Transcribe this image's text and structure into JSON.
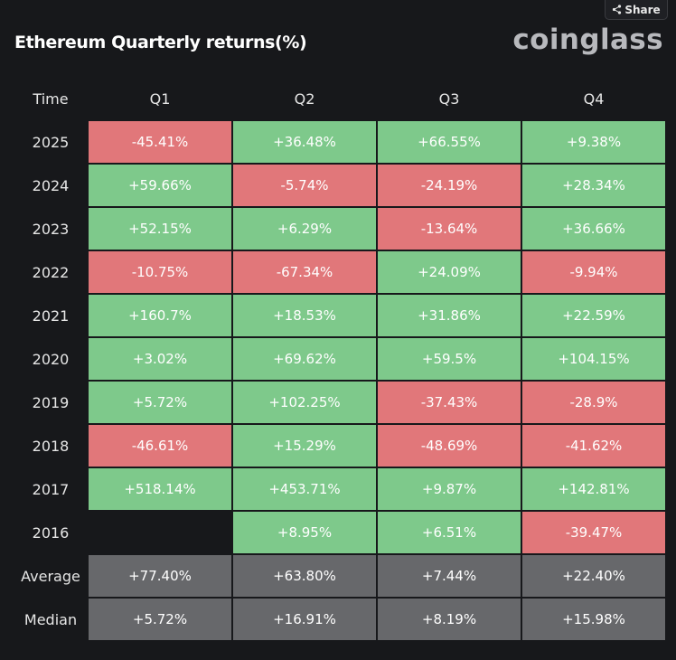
{
  "header": {
    "share_label": "Share",
    "title": "Ethereum Quarterly returns(%)",
    "logo_text": "coinglass"
  },
  "colors": {
    "background": "#17181b",
    "positive": "#7ec98b",
    "negative": "#e1777a",
    "summary": "#67686b"
  },
  "chart_data": {
    "type": "table",
    "title": "Ethereum Quarterly returns(%)",
    "columns": [
      "Time",
      "Q1",
      "Q2",
      "Q3",
      "Q4"
    ],
    "rows": [
      {
        "label": "2025",
        "values": [
          "-45.41%",
          "+36.48%",
          "+66.55%",
          "+9.38%"
        ]
      },
      {
        "label": "2024",
        "values": [
          "+59.66%",
          "-5.74%",
          "-24.19%",
          "+28.34%"
        ]
      },
      {
        "label": "2023",
        "values": [
          "+52.15%",
          "+6.29%",
          "-13.64%",
          "+36.66%"
        ]
      },
      {
        "label": "2022",
        "values": [
          "-10.75%",
          "-67.34%",
          "+24.09%",
          "-9.94%"
        ]
      },
      {
        "label": "2021",
        "values": [
          "+160.7%",
          "+18.53%",
          "+31.86%",
          "+22.59%"
        ]
      },
      {
        "label": "2020",
        "values": [
          "+3.02%",
          "+69.62%",
          "+59.5%",
          "+104.15%"
        ]
      },
      {
        "label": "2019",
        "values": [
          "+5.72%",
          "+102.25%",
          "-37.43%",
          "-28.9%"
        ]
      },
      {
        "label": "2018",
        "values": [
          "-46.61%",
          "+15.29%",
          "-48.69%",
          "-41.62%"
        ]
      },
      {
        "label": "2017",
        "values": [
          "+518.14%",
          "+453.71%",
          "+9.87%",
          "+142.81%"
        ]
      },
      {
        "label": "2016",
        "values": [
          "",
          "+8.95%",
          "+6.51%",
          "-39.47%"
        ]
      }
    ],
    "summary_rows": [
      {
        "label": "Average",
        "values": [
          "+77.40%",
          "+63.80%",
          "+7.44%",
          "+22.40%"
        ]
      },
      {
        "label": "Median",
        "values": [
          "+5.72%",
          "+16.91%",
          "+8.19%",
          "+15.98%"
        ]
      }
    ]
  }
}
